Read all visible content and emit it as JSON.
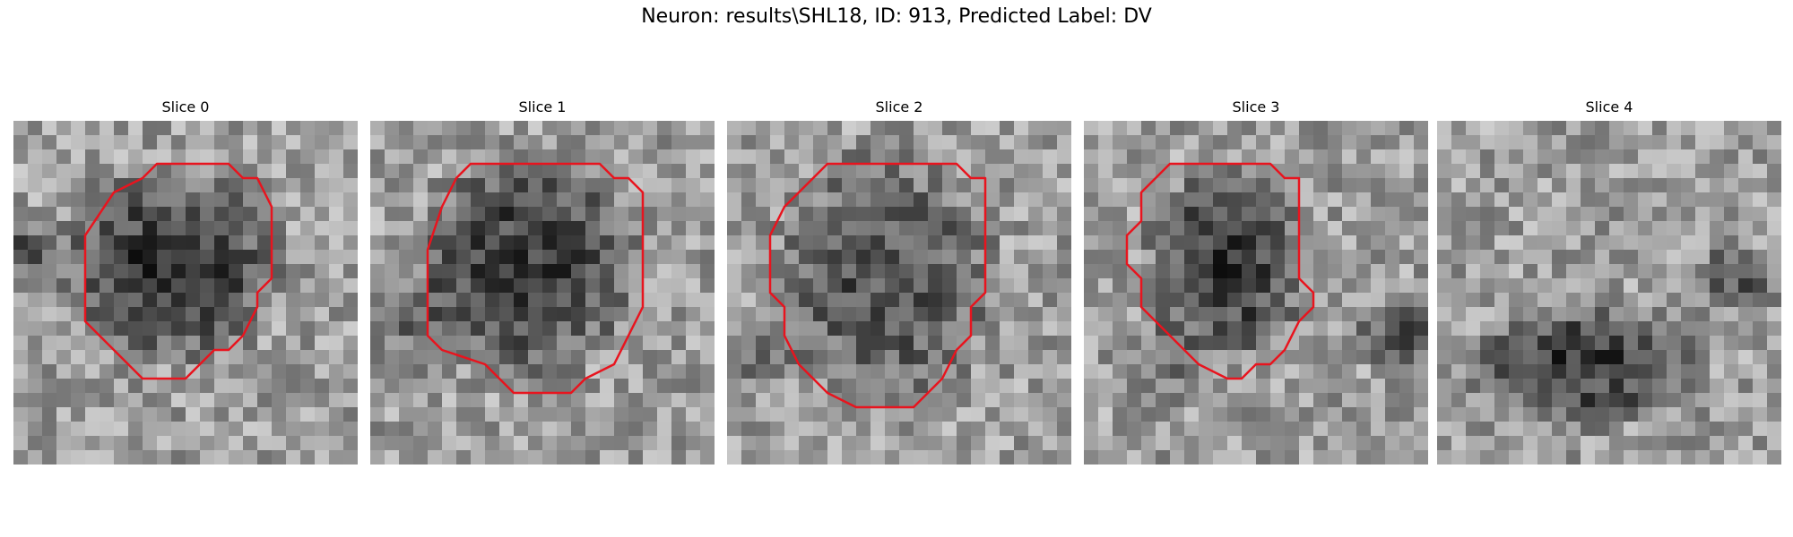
{
  "figure": {
    "title": "Neuron: results\\SHL18, ID: 913, Predicted Label: DV"
  },
  "slices": [
    {
      "title": "Slice 0",
      "has_contour": true,
      "contour": [
        [
          10,
          3
        ],
        [
          15,
          3
        ],
        [
          16,
          4
        ],
        [
          17,
          4
        ],
        [
          18,
          6
        ],
        [
          18,
          11
        ],
        [
          17,
          12
        ],
        [
          17,
          13
        ],
        [
          16,
          15
        ],
        [
          15,
          16
        ],
        [
          14,
          16
        ],
        [
          13,
          17
        ],
        [
          12,
          18
        ],
        [
          10,
          18
        ],
        [
          9,
          18
        ],
        [
          8,
          17
        ],
        [
          5,
          14
        ],
        [
          5,
          8
        ],
        [
          7,
          5
        ],
        [
          9,
          4
        ],
        [
          10,
          3
        ]
      ]
    },
    {
      "title": "Slice 1",
      "has_contour": true,
      "contour": [
        [
          7,
          3
        ],
        [
          16,
          3
        ],
        [
          17,
          4
        ],
        [
          18,
          4
        ],
        [
          19,
          5
        ],
        [
          19,
          13
        ],
        [
          18,
          15
        ],
        [
          17,
          17
        ],
        [
          15,
          18
        ],
        [
          14,
          19
        ],
        [
          12,
          19
        ],
        [
          10,
          19
        ],
        [
          9,
          18
        ],
        [
          8,
          17
        ],
        [
          5,
          16
        ],
        [
          4,
          15
        ],
        [
          4,
          12
        ],
        [
          4,
          9
        ],
        [
          5,
          6
        ],
        [
          6,
          4
        ],
        [
          7,
          3
        ]
      ]
    },
    {
      "title": "Slice 2",
      "has_contour": true,
      "contour": [
        [
          7,
          3
        ],
        [
          16,
          3
        ],
        [
          17,
          4
        ],
        [
          18,
          4
        ],
        [
          18,
          7
        ],
        [
          18,
          12
        ],
        [
          17,
          13
        ],
        [
          17,
          15
        ],
        [
          16,
          16
        ],
        [
          15,
          18
        ],
        [
          13,
          20
        ],
        [
          10,
          20
        ],
        [
          9,
          20
        ],
        [
          7,
          19
        ],
        [
          5,
          17
        ],
        [
          4,
          15
        ],
        [
          4,
          13
        ],
        [
          3,
          12
        ],
        [
          3,
          8
        ],
        [
          4,
          6
        ],
        [
          5,
          5
        ],
        [
          6,
          4
        ],
        [
          7,
          3
        ]
      ]
    },
    {
      "title": "Slice 3",
      "has_contour": true,
      "contour": [
        [
          6,
          3
        ],
        [
          13,
          3
        ],
        [
          14,
          4
        ],
        [
          15,
          4
        ],
        [
          15,
          8
        ],
        [
          15,
          11
        ],
        [
          16,
          12
        ],
        [
          16,
          13
        ],
        [
          15,
          14
        ],
        [
          14,
          16
        ],
        [
          13,
          17
        ],
        [
          12,
          17
        ],
        [
          11,
          18
        ],
        [
          10,
          18
        ],
        [
          8,
          17
        ],
        [
          7,
          16
        ],
        [
          6,
          15
        ],
        [
          5,
          14
        ],
        [
          4,
          13
        ],
        [
          4,
          11
        ],
        [
          3,
          10
        ],
        [
          3,
          8
        ],
        [
          4,
          7
        ],
        [
          4,
          5
        ],
        [
          5,
          4
        ],
        [
          6,
          3
        ]
      ]
    },
    {
      "title": "Slice 4",
      "has_contour": false,
      "contour": []
    }
  ],
  "colors": {
    "contour": "#e8141e",
    "text": "#000000",
    "background": "#ffffff"
  }
}
